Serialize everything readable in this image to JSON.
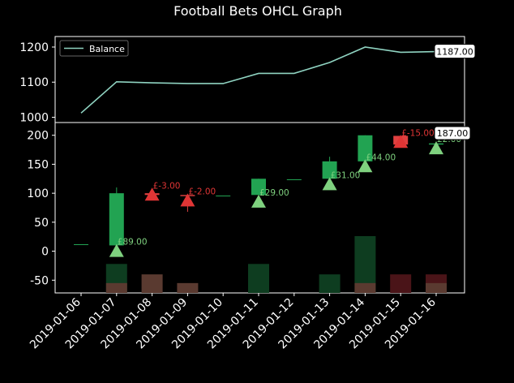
{
  "title": "Football Bets OHCL Graph",
  "colors": {
    "background": "#000000",
    "foreground": "#ffffff",
    "balance_line": "#8fd3c1",
    "up_body": "#22a352",
    "down_body": "#e04040",
    "win_marker": "#7fd17f",
    "loss_marker": "#e03535",
    "volume_up": "#0e3d20",
    "volume_down": "#4a1418",
    "volume_neutral": "#5a3a30"
  },
  "chart_data": [
    {
      "type": "line",
      "title": "Football Bets OHCL Graph",
      "legend": {
        "entries": [
          "Balance"
        ],
        "placement": "upper-left"
      },
      "x": [
        "2019-01-06",
        "2019-01-07",
        "2019-01-08",
        "2019-01-09",
        "2019-01-10",
        "2019-01-11",
        "2019-01-12",
        "2019-01-13",
        "2019-01-14",
        "2019-01-15",
        "2019-01-16"
      ],
      "series": [
        {
          "name": "Balance",
          "values": [
            1012,
            1101,
            1098,
            1096,
            1096,
            1125,
            1125,
            1156,
            1200,
            1185,
            1187
          ]
        }
      ],
      "yticks": [
        1000,
        1100,
        1200
      ],
      "ylim": [
        985,
        1230
      ],
      "last_value_label": "1187.00"
    },
    {
      "type": "bar",
      "subtype": "ohlc-candlestick",
      "x": [
        "2019-01-06",
        "2019-01-07",
        "2019-01-08",
        "2019-01-09",
        "2019-01-10",
        "2019-01-11",
        "2019-01-12",
        "2019-01-13",
        "2019-01-14",
        "2019-01-15",
        "2019-01-16"
      ],
      "candles": [
        {
          "open": 12,
          "high": 12,
          "low": 12,
          "close": 12
        },
        {
          "open": 10,
          "high": 110,
          "low": 10,
          "close": 100
        },
        {
          "open": 100,
          "high": 103,
          "low": 90,
          "close": 97
        },
        {
          "open": 97,
          "high": 97,
          "low": 68,
          "close": 95
        },
        {
          "open": 96,
          "high": 96,
          "low": 96,
          "close": 96
        },
        {
          "open": 97,
          "high": 125,
          "low": 97,
          "close": 125
        },
        {
          "open": 124,
          "high": 124,
          "low": 124,
          "close": 124
        },
        {
          "open": 125,
          "high": 163,
          "low": 125,
          "close": 155
        },
        {
          "open": 155,
          "high": 200,
          "low": 155,
          "close": 200
        },
        {
          "open": 199,
          "high": 199,
          "low": 180,
          "close": 184
        },
        {
          "open": 184,
          "high": 189,
          "low": 180,
          "close": 186
        }
      ],
      "markers": [
        {
          "x": "2019-01-07",
          "y": 0,
          "kind": "win",
          "label": "£89.00"
        },
        {
          "x": "2019-01-08",
          "y": 97,
          "kind": "loss",
          "label": "£-3.00"
        },
        {
          "x": "2019-01-09",
          "y": 87,
          "kind": "loss",
          "label": "£-2.00"
        },
        {
          "x": "2019-01-11",
          "y": 85,
          "kind": "win",
          "label": "£29.00"
        },
        {
          "x": "2019-01-13",
          "y": 115,
          "kind": "win",
          "label": "£31.00"
        },
        {
          "x": "2019-01-14",
          "y": 146,
          "kind": "win",
          "label": "£44.00"
        },
        {
          "x": "2019-01-15",
          "y": 188,
          "kind": "loss",
          "label": "£-15.00"
        },
        {
          "x": "2019-01-16",
          "y": 177,
          "kind": "win",
          "label": "£2.00"
        }
      ],
      "volume": [
        {
          "x": "2019-01-07",
          "top": -22,
          "kind": "up"
        },
        {
          "x": "2019-01-07",
          "top": -55,
          "kind": "neutral"
        },
        {
          "x": "2019-01-08",
          "top": -40,
          "kind": "neutral"
        },
        {
          "x": "2019-01-09",
          "top": -55,
          "kind": "neutral"
        },
        {
          "x": "2019-01-11",
          "top": -22,
          "kind": "up"
        },
        {
          "x": "2019-01-13",
          "top": -40,
          "kind": "up"
        },
        {
          "x": "2019-01-14",
          "top": 26,
          "kind": "up"
        },
        {
          "x": "2019-01-14",
          "top": -55,
          "kind": "neutral"
        },
        {
          "x": "2019-01-15",
          "top": -40,
          "kind": "down"
        },
        {
          "x": "2019-01-16",
          "top": -40,
          "kind": "down"
        },
        {
          "x": "2019-01-16",
          "top": -55,
          "kind": "neutral"
        }
      ],
      "yticks": [
        -50,
        0,
        50,
        100,
        150,
        200
      ],
      "ylim": [
        -72,
        222
      ],
      "last_value_label": "187.00"
    }
  ]
}
